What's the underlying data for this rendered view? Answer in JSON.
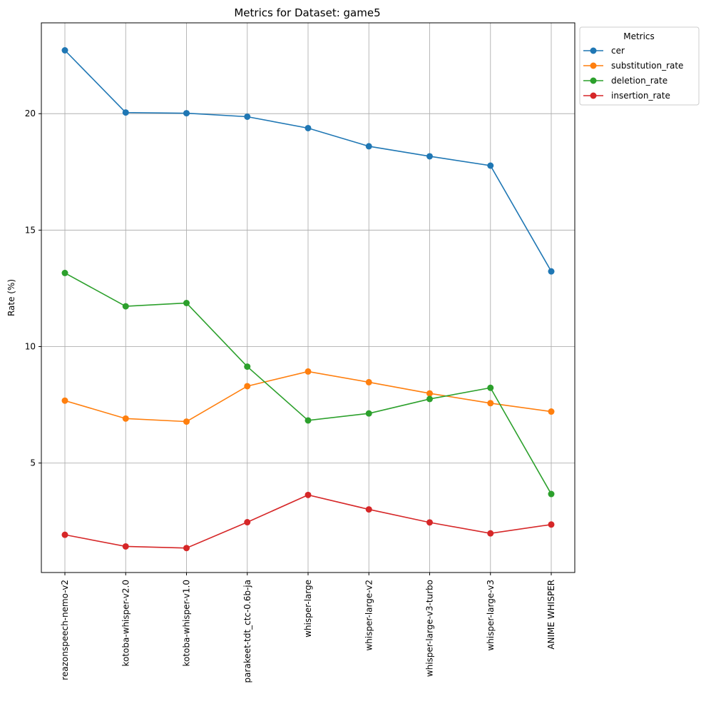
{
  "chart_data": {
    "type": "line",
    "title": "Metrics for Dataset: game5",
    "xlabel": "",
    "ylabel": "Rate (%)",
    "ylim": [
      0.3,
      23.9
    ],
    "yticks": [
      5,
      10,
      15,
      20
    ],
    "grid": true,
    "legend": {
      "title": "Metrics",
      "placement": "outside top-right"
    },
    "categories": [
      "reazonspeech-nemo-v2",
      "kotoba-whisper-v2.0",
      "kotoba-whisper-v1.0",
      "parakeet-tdt_ctc-0.6b-ja",
      "whisper-large",
      "whisper-large-v2",
      "whisper-large-v3-turbo",
      "whisper-large-v3",
      "ANIME WHISPER"
    ],
    "series": [
      {
        "name": "cer",
        "color": "#1f77b4",
        "values": [
          22.72,
          20.05,
          20.02,
          19.87,
          19.38,
          18.6,
          18.17,
          17.77,
          13.23
        ]
      },
      {
        "name": "substitution_rate",
        "color": "#ff7f0e",
        "values": [
          7.68,
          6.91,
          6.78,
          8.3,
          8.93,
          8.47,
          7.99,
          7.57,
          7.21
        ]
      },
      {
        "name": "deletion_rate",
        "color": "#2ca02c",
        "values": [
          13.16,
          11.73,
          11.87,
          9.14,
          6.83,
          7.13,
          7.75,
          8.23,
          3.67
        ]
      },
      {
        "name": "insertion_rate",
        "color": "#d62728",
        "values": [
          1.92,
          1.42,
          1.35,
          2.46,
          3.63,
          3.01,
          2.45,
          1.98,
          2.36
        ]
      }
    ]
  }
}
